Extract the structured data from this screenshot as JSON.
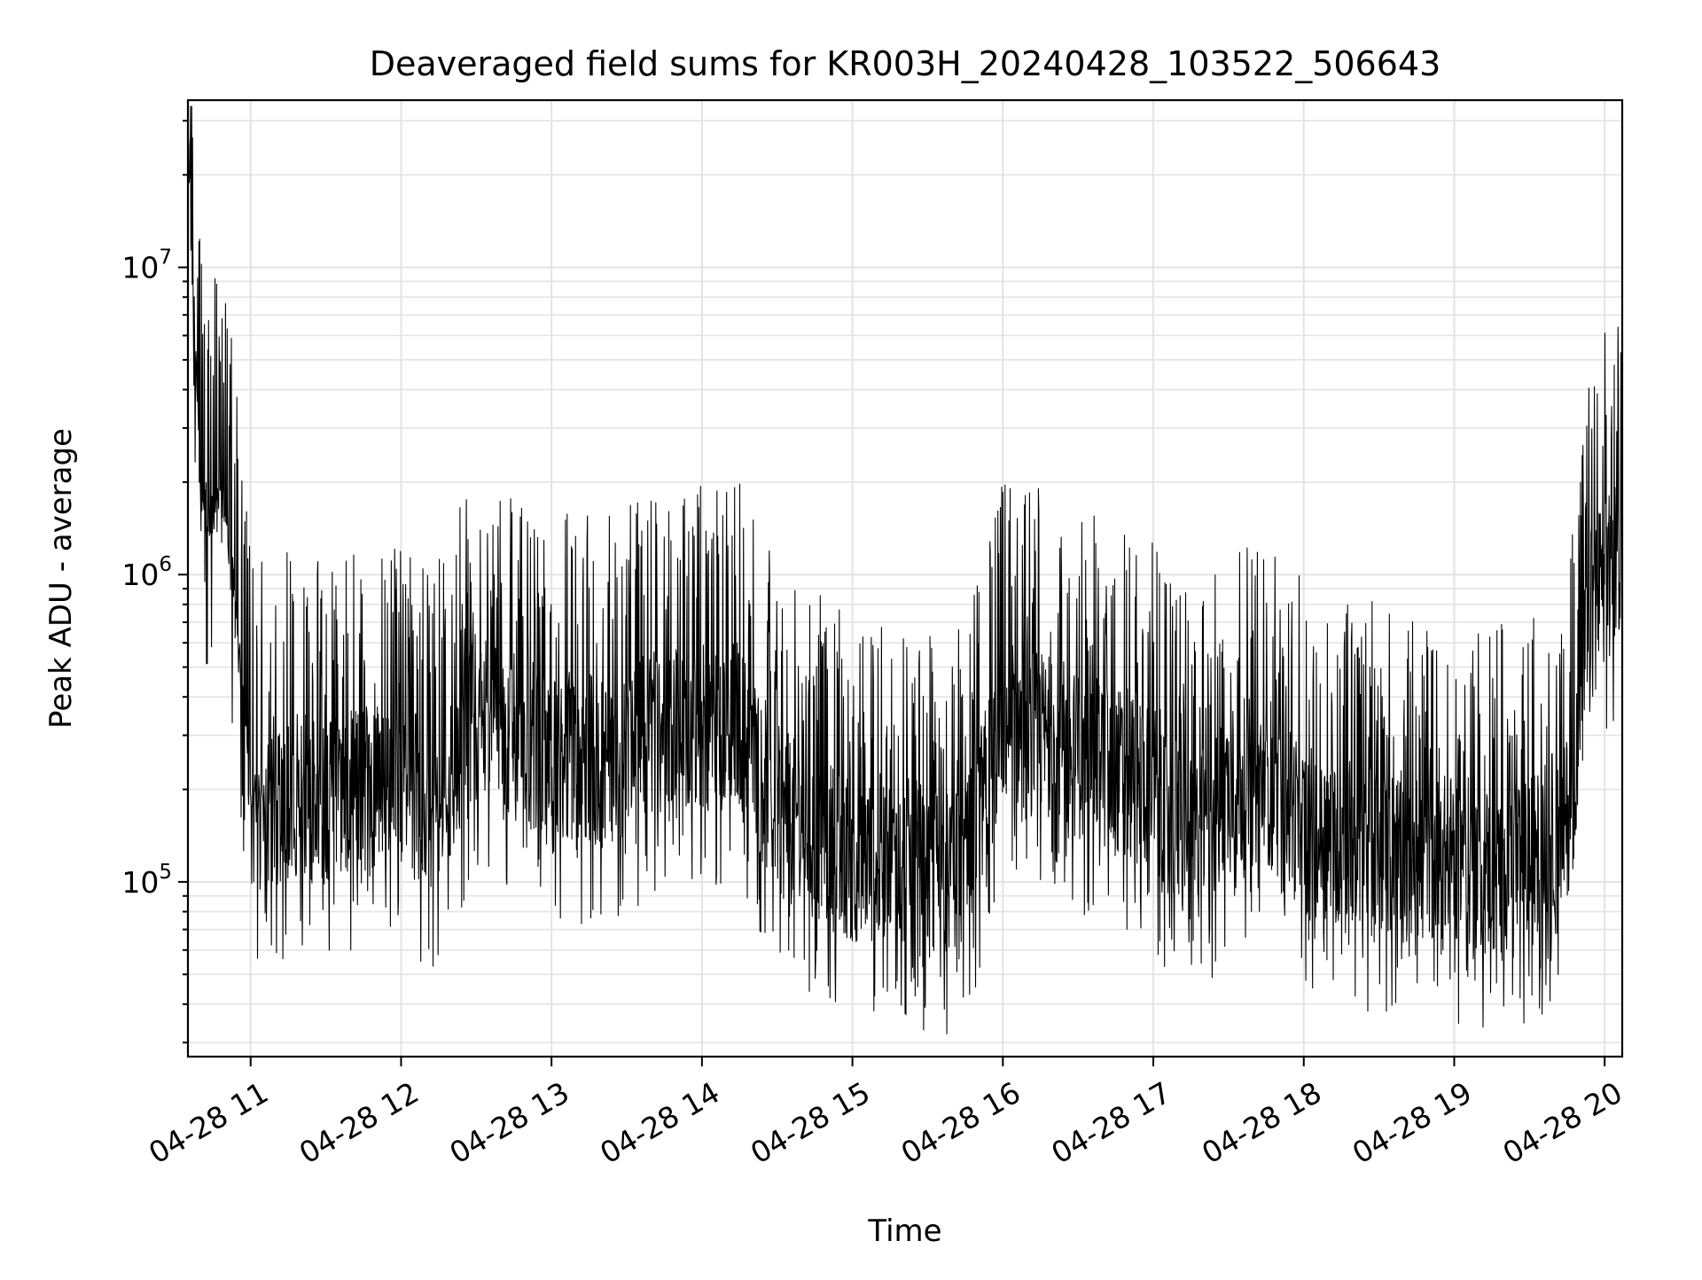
{
  "chart_data": {
    "type": "line",
    "title": "Deaveraged field sums for KR003H_20240428_103522_506643",
    "xlabel": "Time",
    "ylabel": "Peak ADU - average",
    "yscale": "log",
    "ylim": [
      27000,
      35000000
    ],
    "xlim": [
      "04-28 10:35",
      "04-28 20:07"
    ],
    "x_ticks": [
      "04-28 11",
      "04-28 12",
      "04-28 13",
      "04-28 14",
      "04-28 15",
      "04-28 16",
      "04-28 17",
      "04-28 18",
      "04-28 19",
      "04-28 20"
    ],
    "y_ticks": [
      {
        "base": "10",
        "exp": "5",
        "value": 100000
      },
      {
        "base": "10",
        "exp": "6",
        "value": 1000000
      },
      {
        "base": "10",
        "exp": "7",
        "value": 10000000
      }
    ],
    "grid": true,
    "line_color": "#000000",
    "series": [
      {
        "x": [
          "04-28 10:35",
          "04-28 10:40",
          "04-28 10:45",
          "04-28 10:50",
          "04-28 10:55",
          "04-28 11:00",
          "04-28 11:15",
          "04-28 11:30",
          "04-28 11:45",
          "04-28 12:00",
          "04-28 12:15",
          "04-28 12:30",
          "04-28 12:45",
          "04-28 13:00",
          "04-28 13:15",
          "04-28 13:30",
          "04-28 13:45",
          "04-28 14:00",
          "04-28 14:15",
          "04-28 14:30",
          "04-28 14:45",
          "04-28 15:00",
          "04-28 15:15",
          "04-28 15:30",
          "04-28 15:45",
          "04-28 16:00",
          "04-28 16:15",
          "04-28 16:30",
          "04-28 16:45",
          "04-28 17:00",
          "04-28 17:15",
          "04-28 17:30",
          "04-28 17:45",
          "04-28 18:00",
          "04-28 18:15",
          "04-28 18:30",
          "04-28 18:45",
          "04-28 19:00",
          "04-28 19:15",
          "04-28 19:30",
          "04-28 19:45",
          "04-28 19:55",
          "04-28 20:07"
        ],
        "y": [
          25000000,
          1700000,
          1500000,
          1600000,
          600000,
          180000,
          190000,
          180000,
          200000,
          190000,
          180000,
          350000,
          300000,
          260000,
          250000,
          260000,
          340000,
          320000,
          330000,
          170000,
          140000,
          120000,
          120000,
          110000,
          105000,
          340000,
          300000,
          260000,
          230000,
          210000,
          130000,
          200000,
          220000,
          150000,
          135000,
          130000,
          115000,
          120000,
          110000,
          115000,
          160000,
          800000,
          1300000
        ]
      }
    ]
  }
}
